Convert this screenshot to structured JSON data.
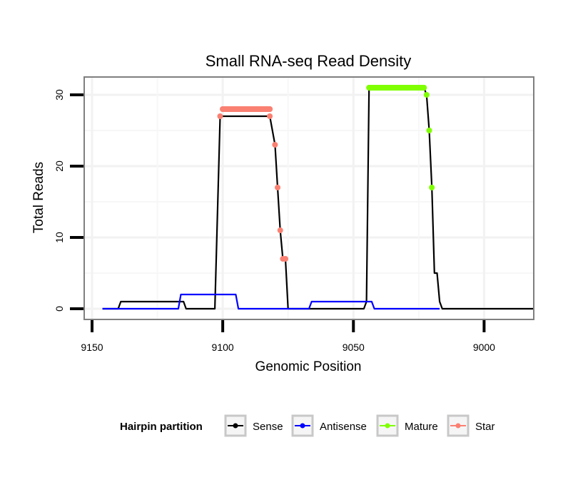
{
  "chart_data": {
    "type": "line",
    "title": "Small RNA-seq Read Density",
    "xlabel": "Genomic Position",
    "ylabel": "Total Reads",
    "x_reversed": true,
    "xlim": [
      9153,
      8981
    ],
    "ylim": [
      -1.5,
      32.5
    ],
    "xticks": [
      9150,
      9100,
      9050,
      9000
    ],
    "yticks": [
      0,
      10,
      20,
      30
    ],
    "grid": true,
    "legend": {
      "title": "Hairpin partition",
      "position": "bottom"
    },
    "series": [
      {
        "name": "Sense",
        "color": "#000000",
        "marker": false,
        "points": [
          [
            9146,
            0
          ],
          [
            9140,
            0
          ],
          [
            9139,
            1
          ],
          [
            9115,
            1
          ],
          [
            9114,
            0
          ],
          [
            9103,
            0
          ],
          [
            9101,
            27
          ],
          [
            9082,
            27
          ],
          [
            9080,
            23
          ],
          [
            9079,
            17
          ],
          [
            9078,
            11
          ],
          [
            9077,
            7
          ],
          [
            9076,
            7
          ],
          [
            9075,
            0
          ],
          [
            9046,
            0
          ],
          [
            9045,
            1
          ],
          [
            9044,
            31
          ],
          [
            9023,
            31
          ],
          [
            9022,
            30
          ],
          [
            9021,
            25
          ],
          [
            9020,
            17
          ],
          [
            9019,
            5
          ],
          [
            9018,
            5
          ],
          [
            9017,
            1
          ],
          [
            9016,
            0
          ],
          [
            8981,
            0
          ]
        ]
      },
      {
        "name": "Antisense",
        "color": "#0000ff",
        "marker": false,
        "points": [
          [
            9146,
            0
          ],
          [
            9117,
            0
          ],
          [
            9116,
            2
          ],
          [
            9095,
            2
          ],
          [
            9094,
            0
          ],
          [
            9067,
            0
          ],
          [
            9066,
            1
          ],
          [
            9043,
            1
          ],
          [
            9042,
            0
          ],
          [
            9017,
            0
          ]
        ]
      },
      {
        "name": "Mature",
        "color": "#7fff00",
        "marker": true,
        "points": [
          [
            9044,
            31
          ],
          [
            9041,
            31
          ],
          [
            9038,
            31
          ],
          [
            9035,
            31
          ],
          [
            9032,
            31
          ],
          [
            9029,
            31
          ],
          [
            9026,
            31
          ],
          [
            9023,
            31
          ],
          [
            9022,
            30
          ],
          [
            9021,
            25
          ],
          [
            9020,
            17
          ]
        ]
      },
      {
        "name": "Star",
        "color": "#fa8072",
        "marker": true,
        "points": [
          [
            9101,
            27
          ],
          [
            9100,
            28
          ],
          [
            9097,
            28
          ],
          [
            9094,
            28
          ],
          [
            9091,
            28
          ],
          [
            9088,
            28
          ],
          [
            9085,
            28
          ],
          [
            9082,
            28
          ],
          [
            9082,
            27
          ],
          [
            9080,
            23
          ],
          [
            9079,
            17
          ],
          [
            9078,
            11
          ],
          [
            9077,
            7
          ],
          [
            9076,
            7
          ]
        ]
      }
    ]
  }
}
